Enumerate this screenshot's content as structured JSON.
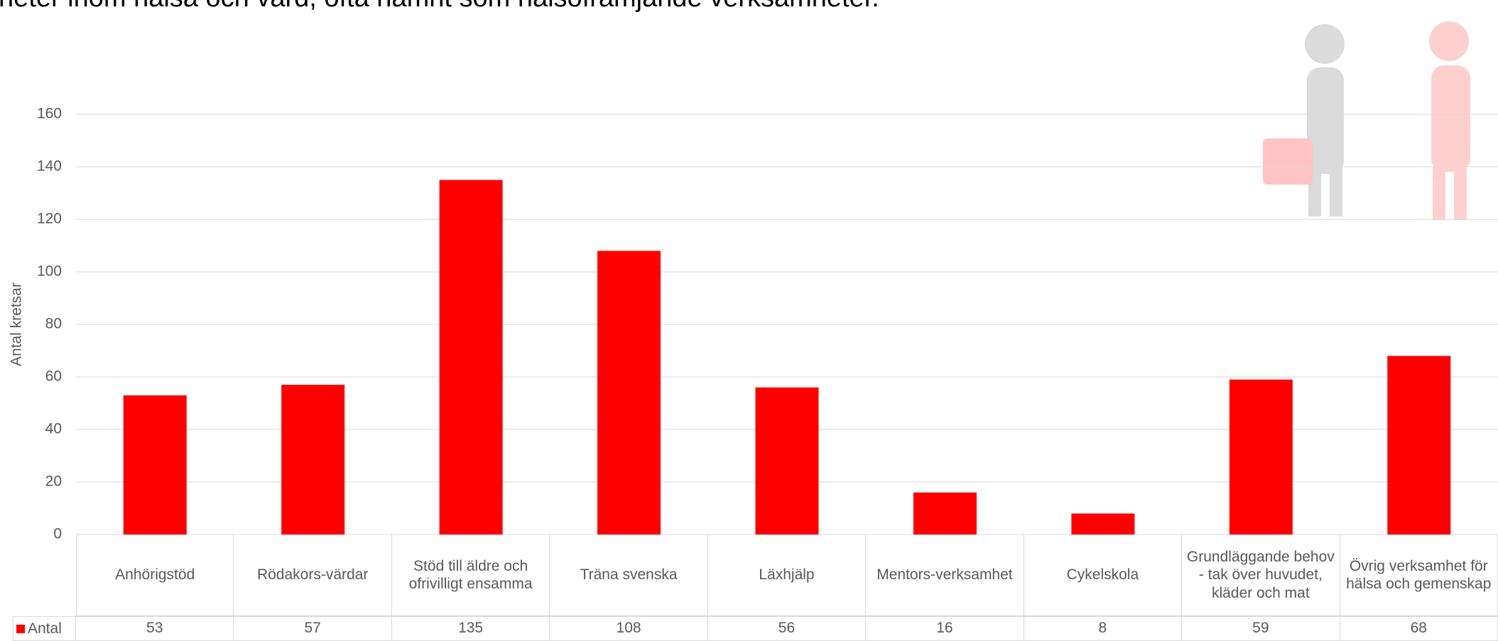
{
  "chart_data": {
    "type": "bar",
    "title": "heter inom hälsa och vård, ofta hamnt som hälsofrämjande verksamheter.",
    "y_label": "Antal kretsar",
    "categories": [
      "Anhörigstöd",
      "Rödakors-värdar",
      "Stöd till äldre och ofrivilligt ensamma",
      "Träna svenska",
      "Läxhjälp",
      "Mentors-verksamhet",
      "Cykelskola",
      "Grundläggande behov - tak över huvudet, kläder och mat",
      "Övrig verksamhet för hälsa och gemenskap"
    ],
    "series": [
      {
        "name": "Antal",
        "color": "#ff0000",
        "values": [
          53,
          57,
          135,
          108,
          56,
          16,
          8,
          59,
          68
        ]
      }
    ],
    "ylim": [
      0,
      160
    ],
    "yticks": [
      0,
      20,
      40,
      60,
      80,
      100,
      120,
      140,
      160
    ],
    "grid": true,
    "data_table": true
  }
}
